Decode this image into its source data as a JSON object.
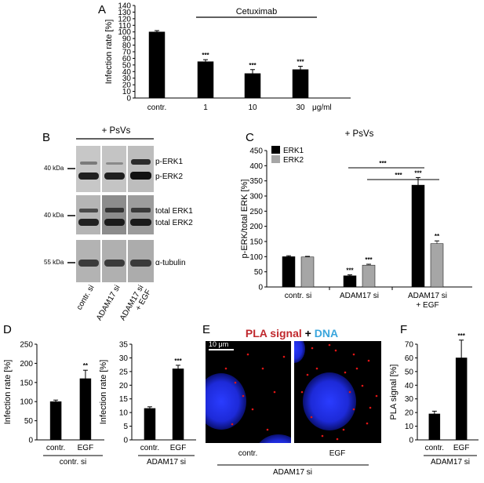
{
  "panels": {
    "A": "A",
    "B": "B",
    "C": "C",
    "D": "D",
    "E": "E",
    "F": "F"
  },
  "colors": {
    "black": "#000000",
    "grey": "#a6a6a6",
    "pla_red": "#c0282d",
    "dna_blue": "#3aa6dd"
  },
  "chart_data": [
    {
      "panel": "A",
      "type": "bar",
      "categories": [
        "contr.",
        "1",
        "10",
        "30"
      ],
      "values": [
        100,
        55,
        37,
        43
      ],
      "errors": [
        2,
        3,
        6,
        5
      ],
      "sig": [
        "",
        "***",
        "***",
        "***"
      ],
      "unit_label": "μg/ml",
      "treatment_label": "Cetuximab",
      "ylabel": "Infection rate [%]",
      "ylim": [
        0,
        140
      ],
      "yticks": [
        0,
        10,
        20,
        30,
        40,
        50,
        60,
        70,
        80,
        90,
        100,
        110,
        120,
        130,
        140
      ]
    },
    {
      "panel": "C",
      "type": "bar",
      "title": "+ PsVs",
      "categories": [
        "contr. si",
        "ADAM17 si",
        "ADAM17 si\n+ EGF"
      ],
      "series": [
        {
          "name": "ERK1",
          "color": "#000000",
          "values": [
            100,
            37,
            336
          ],
          "errors": [
            3,
            3,
            25
          ],
          "sig": [
            "",
            "***",
            "***"
          ]
        },
        {
          "name": "ERK2",
          "color": "#a6a6a6",
          "values": [
            99,
            72,
            143
          ],
          "errors": [
            2,
            3,
            9
          ],
          "sig": [
            "",
            "***",
            "**"
          ]
        }
      ],
      "brackets": [
        "***",
        "***"
      ],
      "ylabel": "p-ERK/total ERK [%]",
      "ylim": [
        0,
        450
      ],
      "yticks": [
        0,
        50,
        100,
        150,
        200,
        250,
        300,
        350,
        400,
        450
      ]
    },
    {
      "panel": "D-left",
      "type": "bar",
      "categories": [
        "contr.",
        "EGF"
      ],
      "values": [
        100,
        160
      ],
      "errors": [
        4,
        22
      ],
      "sig": [
        "",
        "**"
      ],
      "group_label": "contr. si",
      "ylabel": "Infection rate [%]",
      "ylim": [
        0,
        250
      ],
      "yticks": [
        0,
        50,
        100,
        150,
        200,
        250
      ]
    },
    {
      "panel": "D-right",
      "type": "bar",
      "categories": [
        "contr.",
        "EGF"
      ],
      "values": [
        11.5,
        26
      ],
      "errors": [
        0.6,
        1.3
      ],
      "sig": [
        "",
        "***"
      ],
      "group_label": "ADAM17 si",
      "ylabel": "Infection rate [%]",
      "ylim": [
        0,
        35
      ],
      "yticks": [
        0,
        5,
        10,
        15,
        20,
        25,
        30,
        35
      ]
    },
    {
      "panel": "F",
      "type": "bar",
      "categories": [
        "contr.",
        "EGF"
      ],
      "values": [
        19,
        60
      ],
      "errors": [
        2,
        13
      ],
      "sig": [
        "",
        "***"
      ],
      "group_label": "ADAM17 si",
      "ylabel": "PLA signal [%]",
      "ylim": [
        0,
        70
      ],
      "yticks": [
        0,
        10,
        20,
        30,
        40,
        50,
        60,
        70
      ]
    }
  ],
  "blot": {
    "title": "+ PsVs",
    "lanes": [
      "contr. si",
      "ADAM17 si",
      "ADAM17 si\n+ EGF"
    ],
    "markers": [
      "40 kDa",
      "40 kDa",
      "55 kDa"
    ],
    "labels": [
      "p-ERK1",
      "p-ERK2",
      "total ERK1",
      "total ERK2",
      "α-tubulin"
    ]
  },
  "microscopy": {
    "title_red": "PLA signal",
    "title_plus": "+",
    "title_blue": "DNA",
    "scale_bar": "10 μm",
    "lanes": [
      "contr.",
      "EGF"
    ],
    "group_label": "ADAM17 si"
  }
}
